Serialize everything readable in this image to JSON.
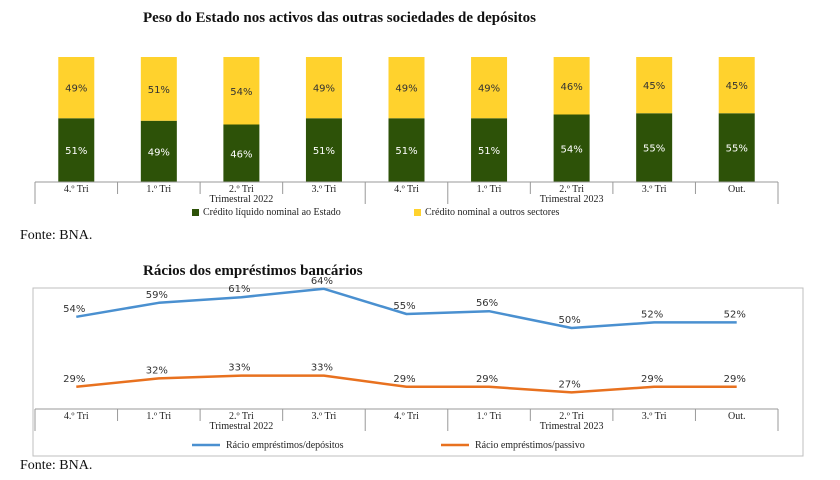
{
  "source_top": "Fonte: BNA.",
  "source_bottom": "Fonte: BNA.",
  "colors": {
    "green": "#2d5208",
    "yellow": "#ffd22d",
    "blue": "#4a90d0",
    "orange": "#e8711f"
  },
  "chart_data": [
    {
      "type": "bar",
      "stacked": true,
      "percent": true,
      "title": "Peso do Estado nos activos das outras sociedades de depósitos",
      "categories": [
        "4.º Tri",
        "1.º Tri",
        "2.º Tri",
        "3.º Tri",
        "4.º Tri",
        "1.º Tri",
        "2.º Tri",
        "3.º Tri",
        "Out."
      ],
      "groups": [
        {
          "label": "Trimestral 2022",
          "from": 0,
          "to": 4
        },
        {
          "label": "Trimestral 2023",
          "from": 4,
          "to": 8
        }
      ],
      "series": [
        {
          "name": "Crédito líquido nominal ao Estado",
          "color": "#2d5208",
          "values": [
            51,
            49,
            46,
            51,
            51,
            51,
            54,
            55,
            55
          ],
          "labels": [
            "51%",
            "49%",
            "46%",
            "51%",
            "51%",
            "51%",
            "54%",
            "55%",
            "55%"
          ]
        },
        {
          "name": "Crédito nominal a outros sectores",
          "color": "#ffd22d",
          "values": [
            49,
            51,
            54,
            49,
            49,
            49,
            46,
            45,
            45
          ],
          "labels": [
            "49%",
            "51%",
            "54%",
            "49%",
            "49%",
            "49%",
            "46%",
            "45%",
            "45%"
          ]
        }
      ],
      "legend_position": "bottom",
      "ylim": [
        0,
        100
      ]
    },
    {
      "type": "line",
      "title": "Rácios dos empréstimos bancários",
      "categories": [
        "4.º Tri",
        "1.º Tri",
        "2.º Tri",
        "3.º Tri",
        "4.º Tri",
        "1.º Tri",
        "2.º Tri",
        "3.º Tri",
        "Out."
      ],
      "groups": [
        {
          "label": "Trimestral 2022",
          "from": 0,
          "to": 4
        },
        {
          "label": "Trimestral 2023",
          "from": 4,
          "to": 8
        }
      ],
      "series": [
        {
          "name": "Rácio empréstimos/depósitos",
          "color": "#4a90d0",
          "values": [
            54,
            59,
            61,
            64,
            55,
            56,
            50,
            52,
            52
          ],
          "labels": [
            "54%",
            "59%",
            "61%",
            "64%",
            "55%",
            "56%",
            "50%",
            "52%",
            "52%"
          ]
        },
        {
          "name": "Rácio empréstimos/passivo",
          "color": "#e8711f",
          "values": [
            29,
            32,
            33,
            33,
            29,
            29,
            27,
            29,
            29
          ],
          "labels": [
            "29%",
            "32%",
            "33%",
            "33%",
            "29%",
            "29%",
            "27%",
            "29%",
            "29%"
          ]
        }
      ],
      "legend_position": "bottom"
    }
  ]
}
